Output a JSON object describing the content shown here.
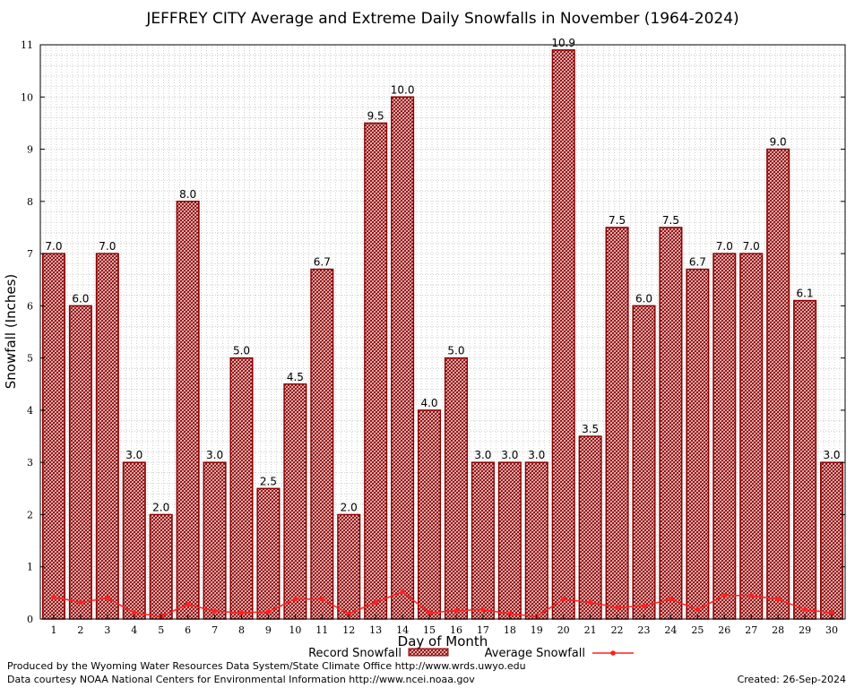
{
  "chart_data": {
    "type": "bar",
    "title": "JEFFREY CITY Average and Extreme Daily Snowfalls in November (1964-2024)",
    "xlabel": "Day of Month",
    "ylabel": "Snowfall (Inches)",
    "ylim": [
      0,
      11
    ],
    "yticks": [
      "0",
      "1",
      "2",
      "3",
      "4",
      "5",
      "6",
      "7",
      "8",
      "9",
      "10",
      "11"
    ],
    "grid": true,
    "legend_position": "bottom-center",
    "categories": [
      "1",
      "2",
      "3",
      "4",
      "5",
      "6",
      "7",
      "8",
      "9",
      "10",
      "11",
      "12",
      "13",
      "14",
      "15",
      "16",
      "17",
      "18",
      "19",
      "20",
      "21",
      "22",
      "23",
      "24",
      "25",
      "26",
      "27",
      "28",
      "29",
      "30"
    ],
    "series": [
      {
        "name": "Record Snowfall",
        "kind": "bar",
        "color": "#8b0000",
        "values": [
          7.0,
          6.0,
          7.0,
          3.0,
          2.0,
          8.0,
          3.0,
          5.0,
          2.5,
          4.5,
          6.7,
          2.0,
          9.5,
          10.0,
          4.0,
          5.0,
          3.0,
          3.0,
          3.0,
          10.9,
          3.5,
          7.5,
          6.0,
          7.5,
          6.7,
          7.0,
          7.0,
          9.0,
          6.1,
          3.0
        ],
        "labels": [
          "7.0",
          "6.0",
          "7.0",
          "3.0",
          "2.0",
          "8.0",
          "3.0",
          "5.0",
          "2.5",
          "4.5",
          "6.7",
          "2.0",
          "9.5",
          "10.0",
          "4.0",
          "5.0",
          "3.0",
          "3.0",
          "3.0",
          "10.9",
          "3.5",
          "7.5",
          "6.0",
          "7.5",
          "6.7",
          "7.0",
          "7.0",
          "9.0",
          "6.1",
          "3.0"
        ]
      },
      {
        "name": "Average Snowfall",
        "kind": "line",
        "color": "#ff2020",
        "values": [
          0.42,
          0.32,
          0.4,
          0.12,
          0.05,
          0.28,
          0.15,
          0.12,
          0.14,
          0.38,
          0.38,
          0.1,
          0.32,
          0.52,
          0.12,
          0.16,
          0.18,
          0.1,
          0.05,
          0.38,
          0.32,
          0.22,
          0.25,
          0.38,
          0.18,
          0.45,
          0.45,
          0.38,
          0.18,
          0.12
        ]
      }
    ]
  },
  "footer": {
    "produced": "Produced by the Wyoming Water Resources Data System/State Climate Office http://www.wrds.uwyo.edu",
    "courtesy": "Data courtesy NOAA National Centers for Environmental Information http://www.ncei.noaa.gov",
    "created": "Created:  26-Sep-2024"
  }
}
